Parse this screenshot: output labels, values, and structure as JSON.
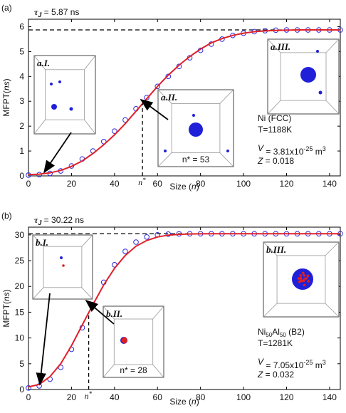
{
  "chart_data": [
    {
      "type": "scatter",
      "panel_label": "(a)",
      "xlabel": [
        "Size (",
        "n",
        ")"
      ],
      "ylabel": [
        "MFPT(",
        "ns",
        ")"
      ],
      "xlim": [
        0,
        145
      ],
      "xticks": [
        0,
        20,
        40,
        60,
        80,
        100,
        120,
        140
      ],
      "ylim": [
        0,
        6.3
      ],
      "yticks": [
        0,
        1,
        2,
        3,
        4,
        5,
        6
      ],
      "x": [
        0,
        5,
        10,
        15,
        20,
        25,
        30,
        35,
        40,
        45,
        50,
        55,
        60,
        65,
        70,
        75,
        80,
        85,
        90,
        95,
        100,
        105,
        110,
        115,
        120,
        125,
        130,
        135,
        140,
        145
      ],
      "series": [
        {
          "kind": "markers",
          "color": "#2b2bd9",
          "values": [
            0.03,
            0.05,
            0.1,
            0.2,
            0.4,
            0.68,
            1.0,
            1.38,
            1.8,
            2.25,
            2.7,
            3.15,
            3.6,
            4.0,
            4.4,
            4.75,
            5.05,
            5.3,
            5.5,
            5.65,
            5.74,
            5.8,
            5.84,
            5.86,
            5.87,
            5.87,
            5.87,
            5.87,
            5.87,
            5.87
          ]
        },
        {
          "kind": "line",
          "color": "#e0202a",
          "values": [
            0.05,
            0.07,
            0.12,
            0.22,
            0.38,
            0.6,
            0.9,
            1.25,
            1.65,
            2.1,
            2.6,
            3.1,
            3.6,
            4.05,
            4.45,
            4.8,
            5.1,
            5.35,
            5.52,
            5.65,
            5.74,
            5.8,
            5.83,
            5.85,
            5.86,
            5.87,
            5.87,
            5.87,
            5.87,
            5.87
          ]
        }
      ],
      "tau": {
        "symbol": "τ",
        "subscript": "J",
        "label": " = 5.87 ns",
        "value": 5.87
      },
      "nstar": {
        "symbol": "n",
        "superscript": "*",
        "value": 53
      },
      "insets": [
        {
          "label": "a.I."
        },
        {
          "label": "a.II.",
          "note": "n* = 53"
        },
        {
          "label": "a.III."
        }
      ],
      "sample": {
        "name": [
          "Ni (FCC)"
        ],
        "temperature": "T=1188K",
        "volume": [
          "V",
          " = 3.81x10",
          "-25",
          " m",
          "3"
        ],
        "z": [
          "Z",
          " = 0.018"
        ]
      }
    },
    {
      "type": "scatter",
      "panel_label": "(b)",
      "xlabel": [
        "Size (",
        "n",
        ")"
      ],
      "ylabel": [
        "MFPT(",
        "ns",
        ")"
      ],
      "xlim": [
        0,
        145
      ],
      "xticks": [
        0,
        20,
        40,
        60,
        80,
        100,
        120,
        140
      ],
      "ylim": [
        0,
        31.5
      ],
      "yticks": [
        0,
        5,
        10,
        15,
        20,
        25,
        30
      ],
      "x": [
        0,
        5,
        10,
        15,
        20,
        25,
        30,
        35,
        40,
        45,
        50,
        55,
        60,
        65,
        70,
        75,
        80,
        85,
        90,
        95,
        100,
        105,
        110,
        115,
        120,
        125,
        130,
        135,
        140,
        145
      ],
      "series": [
        {
          "kind": "markers",
          "color": "#2b2bd9",
          "values": [
            0.3,
            0.7,
            2.0,
            4.3,
            7.8,
            12.0,
            16.5,
            20.8,
            24.2,
            26.8,
            28.6,
            29.6,
            30.0,
            30.15,
            30.2,
            30.22,
            30.22,
            30.22,
            30.22,
            30.22,
            30.22,
            30.22,
            30.22,
            30.22,
            30.22,
            30.22,
            30.22,
            30.22,
            30.22,
            30.22
          ]
        },
        {
          "kind": "line",
          "color": "#e0202a",
          "values": [
            0.5,
            1.0,
            2.5,
            5.0,
            8.5,
            12.5,
            16.5,
            20.3,
            23.5,
            26.0,
            27.8,
            28.9,
            29.6,
            29.95,
            30.1,
            30.18,
            30.2,
            30.22,
            30.22,
            30.22,
            30.22,
            30.22,
            30.22,
            30.22,
            30.22,
            30.22,
            30.22,
            30.22,
            30.22,
            30.22
          ]
        }
      ],
      "tau": {
        "symbol": "τ",
        "subscript": "J",
        "label": " = 30.22 ns",
        "value": 30.22
      },
      "nstar": {
        "symbol": "n",
        "superscript": "*",
        "value": 28
      },
      "insets": [
        {
          "label": "b.I."
        },
        {
          "label": "b.II.",
          "note": "n* = 28"
        },
        {
          "label": "b.III."
        }
      ],
      "sample": {
        "name": [
          "Ni",
          "50",
          "Al",
          "50",
          " (B2)"
        ],
        "temperature": "T=1281K",
        "volume": [
          "V",
          " = 7.05x10",
          "-25",
          " m",
          "3"
        ],
        "z": [
          "Z",
          " = 0.032"
        ]
      }
    }
  ]
}
